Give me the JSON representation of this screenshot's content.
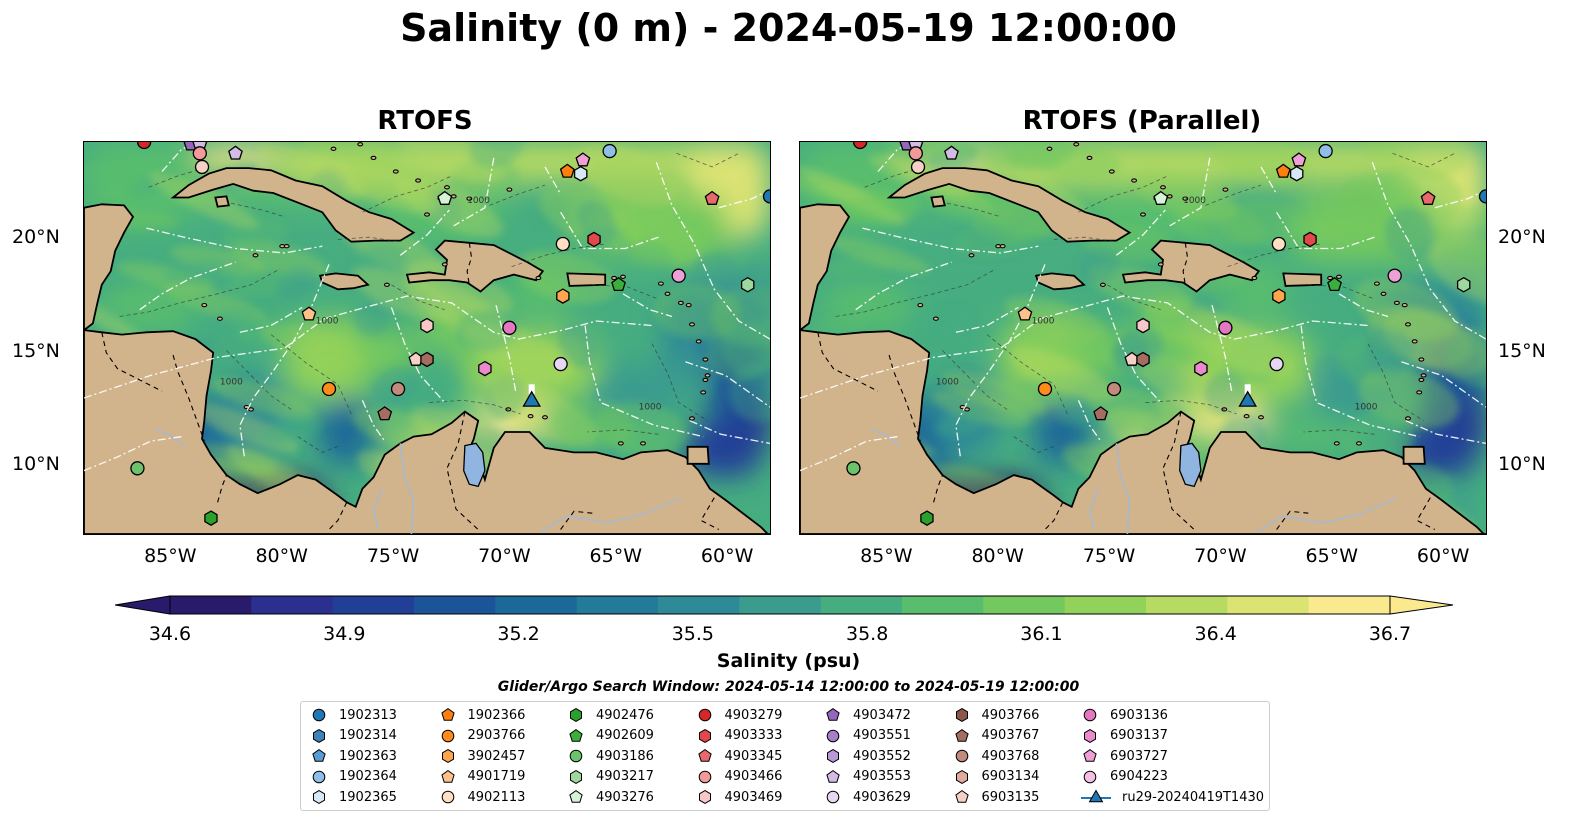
{
  "title": "Salinity (0 m) - 2024-05-19 12:00:00",
  "panels": [
    {
      "title": "RTOFS"
    },
    {
      "title": "RTOFS (Parallel)"
    }
  ],
  "axes": {
    "x_ticks": [
      "85°W",
      "80°W",
      "75°W",
      "70°W",
      "65°W",
      "60°W"
    ],
    "y_ticks": [
      "20°N",
      "15°N",
      "10°N"
    ]
  },
  "colorbar": {
    "label": "Salinity (psu)",
    "ticks": [
      "34.6",
      "34.9",
      "35.2",
      "35.5",
      "35.8",
      "36.1",
      "36.4",
      "36.7"
    ],
    "range": [
      34.6,
      36.7
    ],
    "colors": [
      "#2a1a6b",
      "#2b2f8f",
      "#213f97",
      "#1b5498",
      "#1c6999",
      "#237a99",
      "#2f8a97",
      "#3b9c8e",
      "#46ad80",
      "#59bd6e",
      "#74c95e",
      "#93d25a",
      "#b6da62",
      "#dbe373",
      "#fbe98f"
    ]
  },
  "search_window": "Glider/Argo Search Window: 2024-05-14 12:00:00 to 2024-05-19 12:00:00",
  "legend": [
    {
      "label": "1902313",
      "shape": "circle",
      "color": "#1f77b4"
    },
    {
      "label": "1902314",
      "shape": "hexagon",
      "color": "#3d82b8"
    },
    {
      "label": "1902363",
      "shape": "pentagon",
      "color": "#5a9bd4"
    },
    {
      "label": "1902364",
      "shape": "circle",
      "color": "#8fbfe6"
    },
    {
      "label": "1902365",
      "shape": "hexagon",
      "color": "#d7e9f7"
    },
    {
      "label": "1902366",
      "shape": "pentagon",
      "color": "#ff7f0e"
    },
    {
      "label": "2903766",
      "shape": "circle",
      "color": "#ff8c1a"
    },
    {
      "label": "3902457",
      "shape": "hexagon",
      "color": "#ffa54d"
    },
    {
      "label": "4901719",
      "shape": "pentagon",
      "color": "#ffc08a"
    },
    {
      "label": "4902113",
      "shape": "circle",
      "color": "#ffe0c2"
    },
    {
      "label": "4902476",
      "shape": "hexagon",
      "color": "#2ca02c"
    },
    {
      "label": "4902609",
      "shape": "pentagon",
      "color": "#3cae3c"
    },
    {
      "label": "4903186",
      "shape": "circle",
      "color": "#6cc36c"
    },
    {
      "label": "4903217",
      "shape": "hexagon",
      "color": "#9ed89e"
    },
    {
      "label": "4903276",
      "shape": "pentagon",
      "color": "#d6f3d6"
    },
    {
      "label": "4903279",
      "shape": "circle",
      "color": "#d62728"
    },
    {
      "label": "4903333",
      "shape": "hexagon",
      "color": "#e0484a"
    },
    {
      "label": "4903345",
      "shape": "pentagon",
      "color": "#e8696b"
    },
    {
      "label": "4903466",
      "shape": "circle",
      "color": "#f29a9a"
    },
    {
      "label": "4903469",
      "shape": "hexagon",
      "color": "#f8c8c8"
    },
    {
      "label": "4903472",
      "shape": "pentagon",
      "color": "#9467bd"
    },
    {
      "label": "4903551",
      "shape": "circle",
      "color": "#a67fc9"
    },
    {
      "label": "4903552",
      "shape": "hexagon",
      "color": "#b99ad6"
    },
    {
      "label": "4903553",
      "shape": "pentagon",
      "color": "#d2bce6"
    },
    {
      "label": "4903629",
      "shape": "circle",
      "color": "#e6d8f2"
    },
    {
      "label": "4903766",
      "shape": "hexagon",
      "color": "#8c564b"
    },
    {
      "label": "4903767",
      "shape": "pentagon",
      "color": "#a46d60"
    },
    {
      "label": "4903768",
      "shape": "circle",
      "color": "#c08a7c"
    },
    {
      "label": "6903134",
      "shape": "hexagon",
      "color": "#e0aa9c"
    },
    {
      "label": "6903135",
      "shape": "pentagon",
      "color": "#f5d0c5"
    },
    {
      "label": "6903136",
      "shape": "circle",
      "color": "#e377c2"
    },
    {
      "label": "6903137",
      "shape": "hexagon",
      "color": "#e98acc"
    },
    {
      "label": "6903727",
      "shape": "pentagon",
      "color": "#ee9fd6"
    },
    {
      "label": "6904223",
      "shape": "circle",
      "color": "#f5bfe4"
    },
    {
      "label": "ru29-20240419T1430",
      "shape": "triangle-line",
      "color": "#1f77b4"
    }
  ],
  "markers": [
    {
      "lon": -86.3,
      "lat": 24.3,
      "shape": "circle",
      "color": "#d62728"
    },
    {
      "lon": -84.2,
      "lat": 24.2,
      "shape": "pentagon",
      "color": "#9467bd"
    },
    {
      "lon": -83.8,
      "lat": 24.2,
      "shape": "pentagon",
      "color": "#d2bce6"
    },
    {
      "lon": -83.8,
      "lat": 23.8,
      "shape": "circle",
      "color": "#f29a9a"
    },
    {
      "lon": -83.7,
      "lat": 23.2,
      "shape": "circle",
      "color": "#f5d0c5"
    },
    {
      "lon": -82.2,
      "lat": 23.8,
      "shape": "pentagon",
      "color": "#d2bce6"
    },
    {
      "lon": -65.4,
      "lat": 23.9,
      "shape": "circle",
      "color": "#8fbfe6"
    },
    {
      "lon": -66.6,
      "lat": 23.5,
      "shape": "pentagon",
      "color": "#ee9fd6"
    },
    {
      "lon": -67.3,
      "lat": 23.0,
      "shape": "pentagon",
      "color": "#ff7f0e"
    },
    {
      "lon": -66.7,
      "lat": 22.9,
      "shape": "hexagon",
      "color": "#d7e9f7"
    },
    {
      "lon": -72.8,
      "lat": 21.8,
      "shape": "pentagon",
      "color": "#d6f3d6"
    },
    {
      "lon": -60.8,
      "lat": 21.8,
      "shape": "pentagon",
      "color": "#e8696b"
    },
    {
      "lon": -58.2,
      "lat": 21.9,
      "shape": "circle",
      "color": "#1f77b4"
    },
    {
      "lon": -67.5,
      "lat": 19.8,
      "shape": "circle",
      "color": "#ffe0c2"
    },
    {
      "lon": -66.1,
      "lat": 20.0,
      "shape": "hexagon",
      "color": "#e0484a"
    },
    {
      "lon": -62.3,
      "lat": 18.4,
      "shape": "circle",
      "color": "#ee9fd6"
    },
    {
      "lon": -65.0,
      "lat": 18.0,
      "shape": "pentagon",
      "color": "#3cae3c"
    },
    {
      "lon": -59.2,
      "lat": 18.0,
      "shape": "hexagon",
      "color": "#9ed89e"
    },
    {
      "lon": -67.5,
      "lat": 17.5,
      "shape": "hexagon",
      "color": "#ffa54d"
    },
    {
      "lon": -78.9,
      "lat": 16.7,
      "shape": "pentagon",
      "color": "#ffc08a"
    },
    {
      "lon": -73.6,
      "lat": 16.2,
      "shape": "hexagon",
      "color": "#f8c8c8"
    },
    {
      "lon": -69.9,
      "lat": 16.1,
      "shape": "circle",
      "color": "#e377c2"
    },
    {
      "lon": -74.1,
      "lat": 14.7,
      "shape": "pentagon",
      "color": "#f5d0c5"
    },
    {
      "lon": -73.6,
      "lat": 14.7,
      "shape": "hexagon",
      "color": "#a46d60"
    },
    {
      "lon": -71.0,
      "lat": 14.3,
      "shape": "hexagon",
      "color": "#e98acc"
    },
    {
      "lon": -67.6,
      "lat": 14.5,
      "shape": "circle",
      "color": "#e6d8f2"
    },
    {
      "lon": -78.0,
      "lat": 13.4,
      "shape": "circle",
      "color": "#ff8c1a"
    },
    {
      "lon": -74.9,
      "lat": 13.4,
      "shape": "circle",
      "color": "#c08a7c"
    },
    {
      "lon": -75.5,
      "lat": 12.3,
      "shape": "pentagon",
      "color": "#a46d60"
    },
    {
      "lon": -86.6,
      "lat": 9.9,
      "shape": "circle",
      "color": "#6cc36c"
    },
    {
      "lon": -83.3,
      "lat": 7.7,
      "shape": "hexagon",
      "color": "#2ca02c"
    }
  ],
  "glider": {
    "lon": -68.9,
    "lat": 12.9,
    "label": "ru29-20240419T1430",
    "color": "#1f77b4"
  },
  "contour_labels": [
    "1000",
    "1000",
    "1000",
    "1000"
  ]
}
